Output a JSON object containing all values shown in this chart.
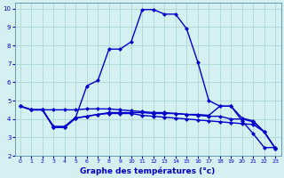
{
  "xlabel": "Graphe des températures (°c)",
  "bg_color": "#d4f0f0",
  "grid_color": "#a8d8d8",
  "line_color": "#0000cc",
  "xlim": [
    -0.5,
    23.5
  ],
  "ylim": [
    2,
    10.3
  ],
  "xticks": [
    0,
    1,
    2,
    3,
    4,
    5,
    6,
    7,
    8,
    9,
    10,
    11,
    12,
    13,
    14,
    15,
    16,
    17,
    18,
    19,
    20,
    21,
    22,
    23
  ],
  "yticks": [
    2,
    3,
    4,
    5,
    6,
    7,
    8,
    9,
    10
  ],
  "curve_top_x": [
    0,
    1,
    2,
    3,
    4,
    5,
    6,
    7,
    8,
    9,
    10,
    11,
    12,
    13,
    14,
    15,
    16,
    17,
    18,
    19,
    20,
    21,
    22,
    23
  ],
  "curve_top_y": [
    4.7,
    4.5,
    4.5,
    3.6,
    3.6,
    4.1,
    5.8,
    6.1,
    7.8,
    7.8,
    8.2,
    9.95,
    9.95,
    9.7,
    9.7,
    8.9,
    7.1,
    5.0,
    4.7,
    4.7,
    3.9,
    3.2,
    2.45,
    2.45
  ],
  "curve_mid_x": [
    0,
    1,
    2,
    3,
    4,
    5,
    6,
    7,
    8,
    9,
    10,
    11,
    12,
    13,
    14,
    15,
    16,
    17,
    18,
    19,
    20,
    21,
    22,
    23
  ],
  "curve_mid_y": [
    4.7,
    4.5,
    4.5,
    3.55,
    3.55,
    4.05,
    4.15,
    4.25,
    4.35,
    4.35,
    4.35,
    4.35,
    4.3,
    4.3,
    4.3,
    4.25,
    4.25,
    4.2,
    4.7,
    4.7,
    4.05,
    3.9,
    3.3,
    2.4
  ],
  "curve_lo1_x": [
    0,
    1,
    2,
    3,
    4,
    5,
    6,
    7,
    8,
    9,
    10,
    11,
    12,
    13,
    14,
    15,
    16,
    17,
    18,
    19,
    20,
    21,
    22,
    23
  ],
  "curve_lo1_y": [
    4.7,
    4.5,
    4.5,
    4.5,
    4.5,
    4.5,
    4.55,
    4.55,
    4.55,
    4.5,
    4.45,
    4.4,
    4.35,
    4.35,
    4.3,
    4.25,
    4.2,
    4.15,
    4.15,
    4.0,
    4.0,
    3.85,
    3.3,
    2.4
  ],
  "curve_lo2_x": [
    0,
    1,
    2,
    3,
    4,
    5,
    6,
    7,
    8,
    9,
    10,
    11,
    12,
    13,
    14,
    15,
    16,
    17,
    18,
    19,
    20,
    21,
    22,
    23
  ],
  "curve_lo2_y": [
    4.7,
    4.5,
    4.5,
    3.55,
    3.55,
    4.05,
    4.15,
    4.25,
    4.3,
    4.3,
    4.3,
    4.2,
    4.15,
    4.1,
    4.05,
    4.0,
    3.95,
    3.9,
    3.85,
    3.8,
    3.75,
    3.7,
    3.3,
    2.4
  ]
}
